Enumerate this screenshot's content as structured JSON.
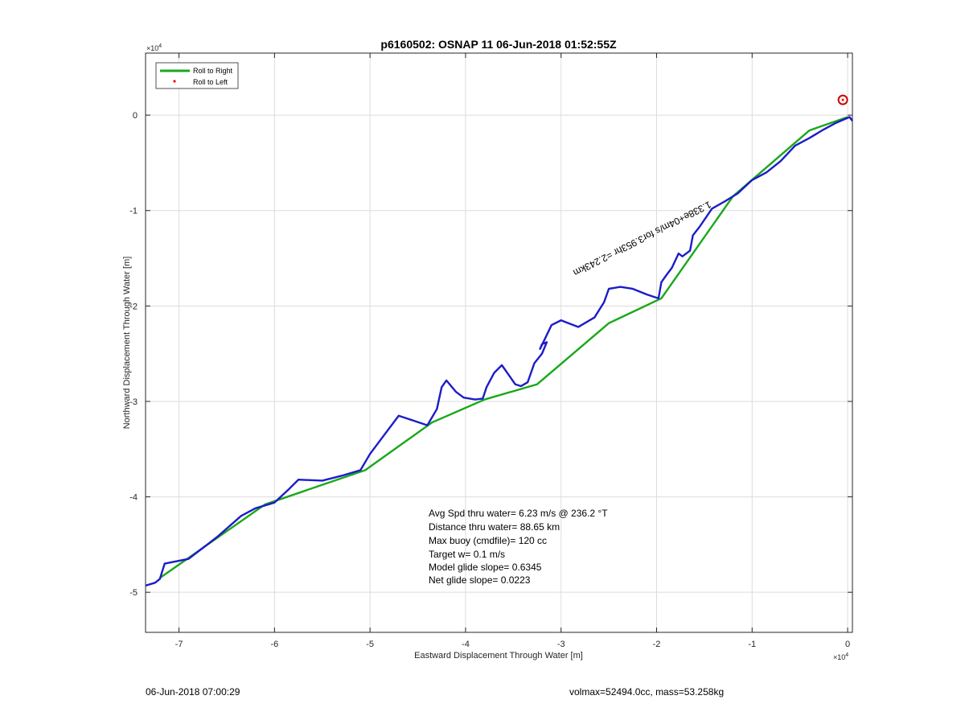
{
  "chart_data": {
    "type": "line",
    "title": "p6160502: OSNAP 11 06-Jun-2018 01:52:55Z",
    "xlabel": "Eastward Displacement Through Water [m]",
    "ylabel": "Northward Displacement Through Water [m]",
    "x_multiplier": "×10",
    "x_multiplier_exp": "4",
    "y_multiplier": "×10",
    "y_multiplier_exp": "4",
    "xlim": [
      -7.35,
      0.05
    ],
    "ylim": [
      -5.42,
      0.65
    ],
    "xticks": [
      -7,
      -6,
      -5,
      -4,
      -3,
      -2,
      -1,
      0
    ],
    "yticks": [
      -5,
      -4,
      -3,
      -2,
      -1,
      0
    ],
    "grid": true,
    "legend_position": "top-left",
    "series": [
      {
        "name": "Roll to Right",
        "color": "#1aa81a",
        "x": [
          -7.2,
          -6.1,
          -5.05,
          -4.35,
          -3.8,
          -3.25,
          -2.5,
          -1.95,
          -1.2,
          -0.4,
          0.0
        ],
        "y": [
          -4.85,
          -4.08,
          -3.72,
          -3.22,
          -2.98,
          -2.82,
          -2.18,
          -1.92,
          -0.85,
          -0.16,
          -0.02
        ]
      },
      {
        "name": "Roll to Left",
        "color": "#ff0000",
        "x": [
          -0.05
        ],
        "y": [
          0.16
        ]
      },
      {
        "name": "",
        "color": "#1c1cc8",
        "x": [
          -7.35,
          -7.25,
          -7.2,
          -7.15,
          -6.9,
          -6.6,
          -6.35,
          -6.2,
          -6.0,
          -5.85,
          -5.75,
          -5.5,
          -5.3,
          -5.1,
          -5.0,
          -4.85,
          -4.7,
          -4.55,
          -4.4,
          -4.3,
          -4.25,
          -4.2,
          -4.1,
          -4.02,
          -3.9,
          -3.82,
          -3.78,
          -3.7,
          -3.62,
          -3.55,
          -3.48,
          -3.42,
          -3.35,
          -3.28,
          -3.2,
          -3.15,
          -3.2,
          -3.22,
          -3.1,
          -3.0,
          -2.95,
          -2.82,
          -2.65,
          -2.55,
          -2.5,
          -2.38,
          -2.25,
          -2.1,
          -1.98,
          -1.95,
          -1.9,
          -1.84,
          -1.77,
          -1.73,
          -1.65,
          -1.62,
          -1.55,
          -1.42,
          -1.28,
          -1.15,
          -1.0,
          -0.85,
          -0.7,
          -0.55,
          -0.4,
          -0.25,
          -0.12,
          0.02,
          0.05
        ],
        "y": [
          -4.93,
          -4.9,
          -4.86,
          -4.7,
          -4.65,
          -4.42,
          -4.2,
          -4.12,
          -4.06,
          -3.92,
          -3.82,
          -3.83,
          -3.78,
          -3.72,
          -3.55,
          -3.35,
          -3.15,
          -3.2,
          -3.25,
          -3.08,
          -2.85,
          -2.78,
          -2.9,
          -2.96,
          -2.98,
          -2.97,
          -2.85,
          -2.7,
          -2.62,
          -2.72,
          -2.82,
          -2.84,
          -2.8,
          -2.6,
          -2.5,
          -2.38,
          -2.4,
          -2.45,
          -2.2,
          -2.15,
          -2.17,
          -2.22,
          -2.12,
          -1.96,
          -1.82,
          -1.8,
          -1.82,
          -1.88,
          -1.92,
          -1.75,
          -1.68,
          -1.6,
          -1.45,
          -1.48,
          -1.42,
          -1.26,
          -1.17,
          -0.98,
          -0.9,
          -0.82,
          -0.68,
          -0.6,
          -0.48,
          -0.32,
          -0.24,
          -0.15,
          -0.08,
          -0.02,
          -0.06
        ]
      }
    ],
    "marker_circle": {
      "x": -0.05,
      "y": 0.16,
      "color": "#cc0000"
    },
    "annotation": {
      "text": "1.338e+04m/s for3.953hr =2.243km",
      "x": -1.45,
      "y": -0.9,
      "angle_deg": -207
    },
    "stats": [
      "Avg Spd thru water=  6.23 m/s @ 236.2 °T",
      "Distance thru water= 88.65 km",
      "Max buoy (cmdfile)= 120 cc",
      "Target w= 0.1 m/s",
      "Model glide slope= 0.6345",
      "Net glide slope= 0.0223"
    ]
  },
  "footer": {
    "left": "06-Jun-2018 07:00:29",
    "right": "volmax=52494.0cc, mass=53.258kg"
  }
}
